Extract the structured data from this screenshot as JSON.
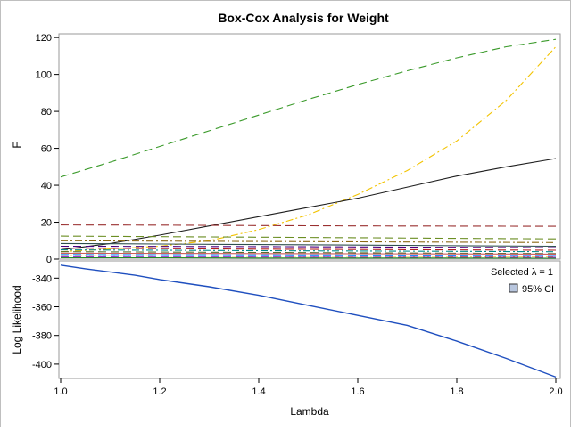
{
  "chart_data": {
    "type": "line",
    "title": "Box-Cox Analysis for Weight",
    "xlabel": "Lambda",
    "xlim": [
      1.0,
      2.0
    ],
    "x_ticks": [
      "1.0",
      "1.2",
      "1.4",
      "1.6",
      "1.8",
      "2.0"
    ],
    "panels": [
      {
        "ylabel": "F",
        "ylim": [
          0,
          122
        ],
        "y_ticks": [
          "0",
          "20",
          "40",
          "60",
          "80",
          "100",
          "120"
        ],
        "series": [
          {
            "color": "#3a9a2a",
            "dash": "dash",
            "x": [
              1.0,
              1.1,
              1.2,
              1.3,
              1.4,
              1.5,
              1.6,
              1.7,
              1.8,
              1.9,
              2.0
            ],
            "y": [
              44.5,
              52.5,
              61,
              69.5,
              78,
              86.5,
              94.5,
              102,
              109,
              115,
              119
            ]
          },
          {
            "color": "#f2c300",
            "dash": "dashdot",
            "x": [
              1.0,
              1.1,
              1.2,
              1.3,
              1.4,
              1.5,
              1.6,
              1.7,
              1.8,
              1.9,
              2.0
            ],
            "y": [
              4,
              5.5,
              7,
              10,
              16,
              24,
              35,
              48,
              64,
              86,
              115
            ]
          },
          {
            "color": "#1e1e1e",
            "dash": "solid",
            "x": [
              1.0,
              1.1,
              1.2,
              1.3,
              1.4,
              1.5,
              1.6,
              1.7,
              1.8,
              1.9,
              2.0
            ],
            "y": [
              5,
              8.5,
              13,
              18,
              23,
              28,
              33,
              39,
              45,
              50,
              54.5
            ]
          },
          {
            "color": "#9a3030",
            "dash": "dash",
            "x": [
              1.0,
              1.2,
              1.4,
              1.6,
              1.8,
              2.0
            ],
            "y": [
              18.5,
              18.4,
              18.2,
              18,
              17.9,
              17.8
            ]
          },
          {
            "color": "#6b8e23",
            "dash": "dash",
            "x": [
              1.0,
              1.2,
              1.4,
              1.6,
              1.8,
              2.0
            ],
            "y": [
              12.5,
              12.2,
              11.9,
              11.6,
              11.3,
              11
            ]
          },
          {
            "color": "#8b6914",
            "dash": "dashdot",
            "x": [
              1.0,
              1.2,
              1.4,
              1.6,
              1.8,
              2.0
            ],
            "y": [
              10,
              9.8,
              9.6,
              9.4,
              9.2,
              9
            ]
          },
          {
            "color": "#2f4f4f",
            "dash": "solid",
            "x": [
              1.0,
              1.2,
              1.4,
              1.6,
              1.8,
              2.0
            ],
            "y": [
              8.5,
              8.2,
              7.9,
              7.6,
              7.3,
              7
            ]
          },
          {
            "color": "#4b0082",
            "dash": "dash",
            "x": [
              1.0,
              1.2,
              1.4,
              1.6,
              1.8,
              2.0
            ],
            "y": [
              7,
              6.9,
              6.8,
              6.6,
              6.4,
              6.2
            ]
          },
          {
            "color": "#b22222",
            "dash": "dash",
            "x": [
              1.0,
              1.2,
              1.4,
              1.6,
              1.8,
              2.0
            ],
            "y": [
              6,
              5.7,
              5.4,
              5.2,
              5,
              4.8
            ]
          },
          {
            "color": "#008b8b",
            "dash": "dashdot",
            "x": [
              1.0,
              1.2,
              1.4,
              1.6,
              1.8,
              2.0
            ],
            "y": [
              5,
              4.8,
              4.6,
              4.4,
              4.2,
              4
            ]
          },
          {
            "color": "#556b2f",
            "dash": "dash",
            "x": [
              1.0,
              1.2,
              1.4,
              1.6,
              1.8,
              2.0
            ],
            "y": [
              4,
              3.8,
              3.6,
              3.4,
              3.2,
              3
            ]
          },
          {
            "color": "#cd5c5c",
            "dash": "solid",
            "x": [
              1.0,
              1.2,
              1.4,
              1.6,
              1.8,
              2.0
            ],
            "y": [
              3.2,
              3.1,
              3.0,
              2.9,
              2.8,
              2.7
            ]
          },
          {
            "color": "#1e90ff",
            "dash": "dash",
            "x": [
              1.0,
              1.2,
              1.4,
              1.6,
              1.8,
              2.0
            ],
            "y": [
              2.5,
              2.4,
              2.3,
              2.2,
              2.1,
              2.0
            ]
          },
          {
            "color": "#ff8c00",
            "dash": "dashdot",
            "x": [
              1.0,
              1.2,
              1.4,
              1.6,
              1.8,
              2.0
            ],
            "y": [
              1.8,
              1.7,
              1.6,
              1.6,
              1.5,
              1.5
            ]
          },
          {
            "color": "#9932cc",
            "dash": "dash",
            "x": [
              1.0,
              1.2,
              1.4,
              1.6,
              1.8,
              2.0
            ],
            "y": [
              1.2,
              1.1,
              1.1,
              1.0,
              1.0,
              1.0
            ]
          },
          {
            "color": "#228b22",
            "dash": "solid",
            "x": [
              1.0,
              1.2,
              1.4,
              1.6,
              1.8,
              2.0
            ],
            "y": [
              0.7,
              0.7,
              0.6,
              0.6,
              0.6,
              0.5
            ]
          }
        ]
      },
      {
        "ylabel": "Log Likelihood",
        "ylim": [
          -410,
          -328
        ],
        "y_ticks": [
          "-340",
          "-360",
          "-380",
          "-400"
        ],
        "y_tick_values": [
          -340,
          -360,
          -380,
          -400
        ],
        "series": [
          {
            "color": "#1f4fbf",
            "dash": "solid",
            "x": [
              1.0,
              1.05,
              1.15,
              1.2,
              1.25,
              1.3,
              1.4,
              1.5,
              1.6,
              1.65,
              1.7,
              1.8,
              1.9,
              2.0
            ],
            "y": [
              -331,
              -333.5,
              -338,
              -341,
              -343.5,
              -346,
              -352,
              -359,
              -366,
              -369.5,
              -373,
              -384,
              -396,
              -409
            ]
          }
        ]
      }
    ],
    "legend": {
      "header": "Selected λ = 1",
      "entries": [
        "95% CI"
      ],
      "ci_swatch_color": "#b8c6de",
      "position": "top-right"
    }
  }
}
